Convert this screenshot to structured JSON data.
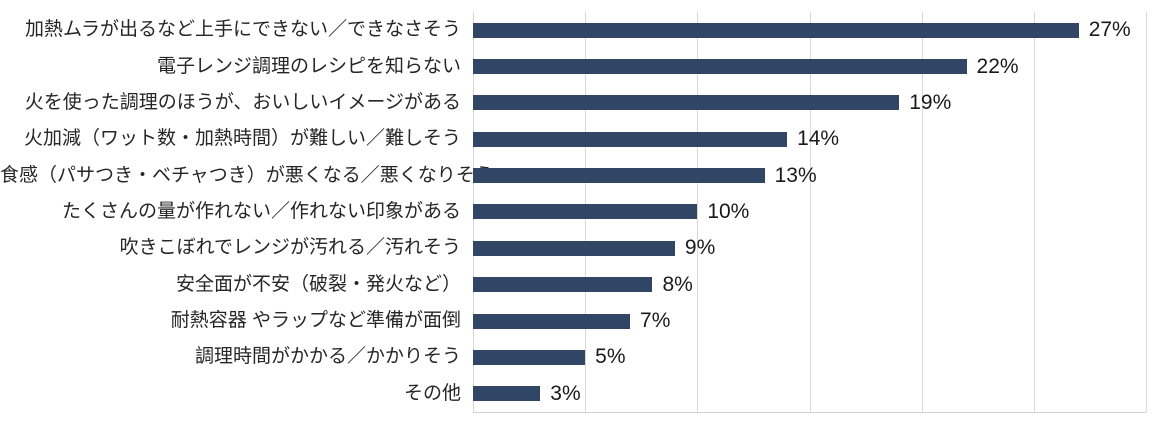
{
  "chart_data": {
    "type": "bar",
    "orientation": "horizontal",
    "title": "",
    "xlabel": "",
    "ylabel": "",
    "categories": [
      "加熱ムラが出るなど上手にできない／できなさそう",
      "電子レンジ調理のレシピを知らない",
      "火を使った調理のほうが、おいしいイメージがある",
      "火加減（ワット数・加熱時間）が難しい／難しそう",
      "食感（パサつき・ベチャつき）が悪くなる／悪くなりそう",
      "たくさんの量が作れない／作れない印象がある",
      "吹きこぼれでレンジが汚れる／汚れそう",
      "安全面が不安（破裂・発火など）",
      "耐熱容器 やラップなど準備が面倒",
      "調理時間がかかる／かかりそう",
      "その他"
    ],
    "values": [
      27,
      22,
      19,
      14,
      13,
      10,
      9,
      8,
      7,
      5,
      3
    ],
    "value_labels": [
      "27%",
      "22%",
      "19%",
      "14%",
      "13%",
      "10%",
      "9%",
      "8%",
      "7%",
      "5%",
      "3%"
    ],
    "xlim": [
      0,
      30
    ],
    "gridline_interval": 5,
    "grid": "vertical",
    "legend": "none",
    "colors": {
      "bar": "#304664",
      "gridline": "#D9D9D9",
      "axis_line": "#D0D0D0",
      "category_label": "#262626",
      "value_label": "#1A1A1A",
      "background": "#FFFFFF"
    }
  }
}
